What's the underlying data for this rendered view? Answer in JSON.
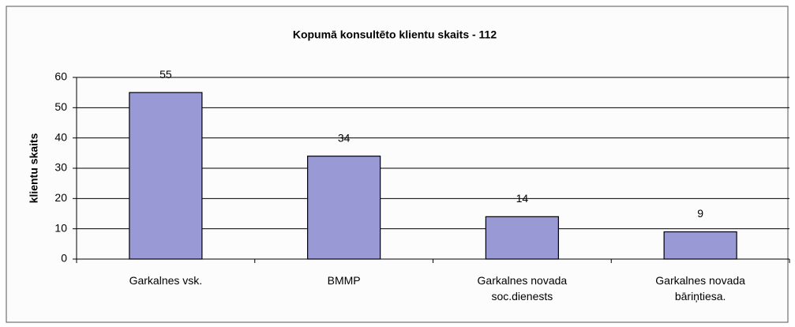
{
  "chart_data": {
    "type": "bar",
    "title": "Kopumā konsultēto klientu skaits - 112",
    "ylabel": "klientu skaits",
    "categories": [
      "Garkalnes vsk.",
      "BMMP",
      "Garkalnes novada soc.dienests",
      "Garkalnes novada bāriņtiesa."
    ],
    "values": [
      55,
      34,
      14,
      9
    ],
    "color": "#9999d6",
    "ylim": [
      0,
      60
    ],
    "yticks": [
      0,
      10,
      20,
      30,
      40,
      50,
      60
    ],
    "grid": true
  }
}
